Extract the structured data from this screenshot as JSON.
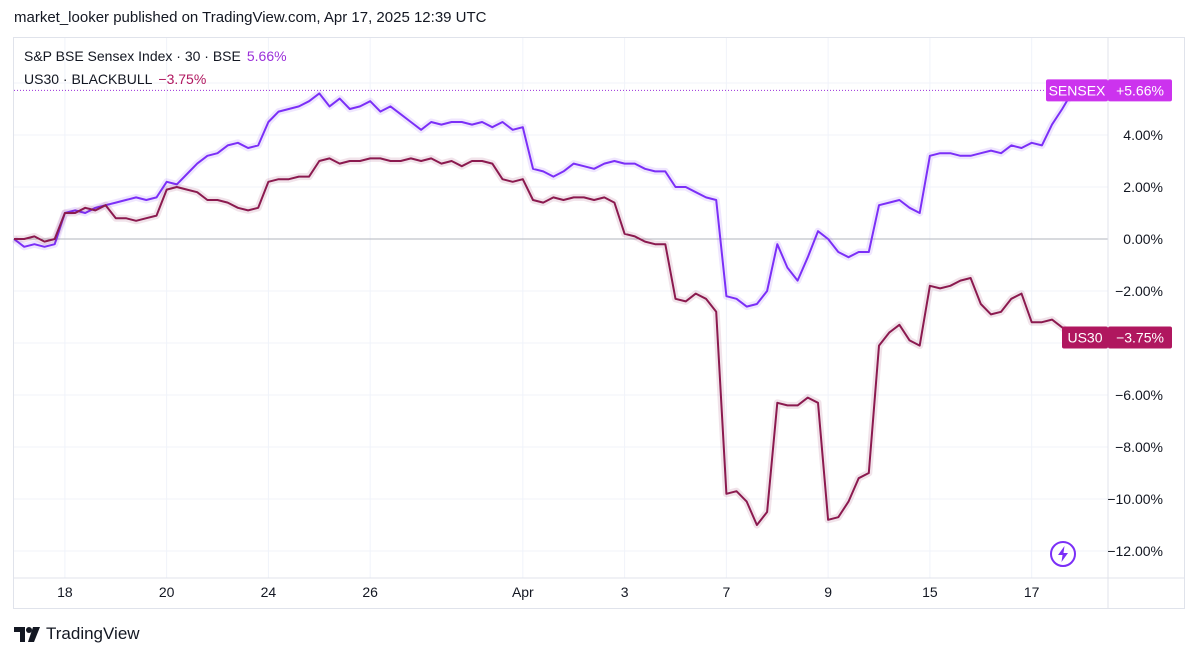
{
  "header": {
    "publish_line": "market_looker published on TradingView.com, Apr 17, 2025 12:39 UTC"
  },
  "legend": [
    {
      "label": "S&P BSE Sensex Index · 30 · BSE",
      "value": "5.66%",
      "color": "#7b2ff7"
    },
    {
      "label": "US30 · BLACKBULL",
      "value": "−3.75%",
      "color": "#8b1a4f"
    }
  ],
  "price_labels": [
    {
      "name": "SENSEX",
      "value": "+5.66%",
      "color": "#cc33ee"
    },
    {
      "name": "US30",
      "value": "−3.75%",
      "color": "#b0175f"
    }
  ],
  "footer": {
    "brand": "TradingView"
  },
  "icons": {
    "brand_logo": "tradingview-logo-icon",
    "flash": "lightning-bolt-icon"
  },
  "chart_data": {
    "type": "line",
    "y_unit": "%",
    "ylim": [
      -12.5,
      6.5
    ],
    "y_ticks": [
      {
        "v": 4,
        "label": "4.00%"
      },
      {
        "v": 2,
        "label": "2.00%"
      },
      {
        "v": 0,
        "label": "0.00%"
      },
      {
        "v": -2,
        "label": "−2.00%"
      },
      {
        "v": -6,
        "label": "−6.00%"
      },
      {
        "v": -8,
        "label": "−8.00%"
      },
      {
        "v": -10,
        "label": "−10.00%"
      },
      {
        "v": -12,
        "label": "−12.00%"
      }
    ],
    "x_range": [
      0,
      21.5
    ],
    "x_ticks": [
      {
        "x": 1,
        "label": "18"
      },
      {
        "x": 3,
        "label": "20"
      },
      {
        "x": 5,
        "label": "24"
      },
      {
        "x": 7,
        "label": "26"
      },
      {
        "x": 10,
        "label": "Apr"
      },
      {
        "x": 12,
        "label": "3"
      },
      {
        "x": 14,
        "label": "7"
      },
      {
        "x": 16,
        "label": "9"
      },
      {
        "x": 18,
        "label": "15"
      },
      {
        "x": 20,
        "label": "17"
      }
    ],
    "grid": true,
    "series": [
      {
        "name": "SENSEX",
        "color": "#7b2ff7",
        "points": [
          [
            0,
            0
          ],
          [
            0.2,
            -0.3
          ],
          [
            0.4,
            -0.2
          ],
          [
            0.6,
            -0.3
          ],
          [
            0.8,
            -0.2
          ],
          [
            1.0,
            1.0
          ],
          [
            1.2,
            1.1
          ],
          [
            1.4,
            1.0
          ],
          [
            1.6,
            1.2
          ],
          [
            1.8,
            1.3
          ],
          [
            2.0,
            1.4
          ],
          [
            2.2,
            1.5
          ],
          [
            2.4,
            1.6
          ],
          [
            2.6,
            1.5
          ],
          [
            2.8,
            1.6
          ],
          [
            3.0,
            2.2
          ],
          [
            3.2,
            2.1
          ],
          [
            3.4,
            2.5
          ],
          [
            3.6,
            2.9
          ],
          [
            3.8,
            3.2
          ],
          [
            4.0,
            3.3
          ],
          [
            4.2,
            3.6
          ],
          [
            4.4,
            3.7
          ],
          [
            4.6,
            3.5
          ],
          [
            4.8,
            3.6
          ],
          [
            5.0,
            4.5
          ],
          [
            5.2,
            4.9
          ],
          [
            5.4,
            5.0
          ],
          [
            5.6,
            5.1
          ],
          [
            5.8,
            5.3
          ],
          [
            6.0,
            5.6
          ],
          [
            6.2,
            5.1
          ],
          [
            6.4,
            5.4
          ],
          [
            6.6,
            5.0
          ],
          [
            6.8,
            5.1
          ],
          [
            7.0,
            5.3
          ],
          [
            7.2,
            4.9
          ],
          [
            7.4,
            5.1
          ],
          [
            7.6,
            4.8
          ],
          [
            7.8,
            4.5
          ],
          [
            8.0,
            4.2
          ],
          [
            8.2,
            4.5
          ],
          [
            8.4,
            4.4
          ],
          [
            8.6,
            4.5
          ],
          [
            8.8,
            4.5
          ],
          [
            9.0,
            4.4
          ],
          [
            9.2,
            4.5
          ],
          [
            9.4,
            4.3
          ],
          [
            9.6,
            4.5
          ],
          [
            9.8,
            4.2
          ],
          [
            10.0,
            4.3
          ],
          [
            10.2,
            2.7
          ],
          [
            10.4,
            2.6
          ],
          [
            10.6,
            2.4
          ],
          [
            10.8,
            2.6
          ],
          [
            11.0,
            2.9
          ],
          [
            11.2,
            2.8
          ],
          [
            11.4,
            2.7
          ],
          [
            11.6,
            2.9
          ],
          [
            11.8,
            3.0
          ],
          [
            12.0,
            2.9
          ],
          [
            12.2,
            2.9
          ],
          [
            12.4,
            2.7
          ],
          [
            12.6,
            2.6
          ],
          [
            12.8,
            2.6
          ],
          [
            13.0,
            2.0
          ],
          [
            13.2,
            2.0
          ],
          [
            13.4,
            1.8
          ],
          [
            13.6,
            1.6
          ],
          [
            13.8,
            1.5
          ],
          [
            14.0,
            -2.2
          ],
          [
            14.2,
            -2.3
          ],
          [
            14.4,
            -2.6
          ],
          [
            14.6,
            -2.5
          ],
          [
            14.8,
            -2.0
          ],
          [
            15.0,
            -0.2
          ],
          [
            15.2,
            -1.1
          ],
          [
            15.4,
            -1.6
          ],
          [
            15.6,
            -0.7
          ],
          [
            15.8,
            0.3
          ],
          [
            16.0,
            0.0
          ],
          [
            16.2,
            -0.5
          ],
          [
            16.4,
            -0.7
          ],
          [
            16.6,
            -0.5
          ],
          [
            16.8,
            -0.5
          ],
          [
            17.0,
            1.3
          ],
          [
            17.2,
            1.4
          ],
          [
            17.4,
            1.5
          ],
          [
            17.6,
            1.2
          ],
          [
            17.8,
            1.0
          ],
          [
            18.0,
            3.2
          ],
          [
            18.2,
            3.3
          ],
          [
            18.4,
            3.3
          ],
          [
            18.6,
            3.2
          ],
          [
            18.8,
            3.2
          ],
          [
            19.0,
            3.3
          ],
          [
            19.2,
            3.4
          ],
          [
            19.4,
            3.3
          ],
          [
            19.6,
            3.6
          ],
          [
            19.8,
            3.5
          ],
          [
            20.0,
            3.7
          ],
          [
            20.2,
            3.6
          ],
          [
            20.4,
            4.4
          ],
          [
            20.6,
            5.0
          ],
          [
            20.8,
            5.66
          ]
        ]
      },
      {
        "name": "US30",
        "color": "#8b1a4f",
        "points": [
          [
            0,
            0
          ],
          [
            0.2,
            0.0
          ],
          [
            0.4,
            0.1
          ],
          [
            0.6,
            -0.1
          ],
          [
            0.8,
            0.0
          ],
          [
            1.0,
            1.0
          ],
          [
            1.2,
            1.0
          ],
          [
            1.4,
            1.2
          ],
          [
            1.6,
            1.1
          ],
          [
            1.8,
            1.3
          ],
          [
            2.0,
            0.8
          ],
          [
            2.2,
            0.8
          ],
          [
            2.4,
            0.7
          ],
          [
            2.6,
            0.8
          ],
          [
            2.8,
            0.9
          ],
          [
            3.0,
            1.9
          ],
          [
            3.2,
            2.0
          ],
          [
            3.4,
            1.9
          ],
          [
            3.6,
            1.8
          ],
          [
            3.8,
            1.5
          ],
          [
            4.0,
            1.5
          ],
          [
            4.2,
            1.4
          ],
          [
            4.4,
            1.2
          ],
          [
            4.6,
            1.1
          ],
          [
            4.8,
            1.2
          ],
          [
            5.0,
            2.2
          ],
          [
            5.2,
            2.3
          ],
          [
            5.4,
            2.3
          ],
          [
            5.6,
            2.4
          ],
          [
            5.8,
            2.4
          ],
          [
            6.0,
            3.0
          ],
          [
            6.2,
            3.1
          ],
          [
            6.4,
            2.9
          ],
          [
            6.6,
            3.0
          ],
          [
            6.8,
            3.0
          ],
          [
            7.0,
            3.1
          ],
          [
            7.2,
            3.1
          ],
          [
            7.4,
            3.0
          ],
          [
            7.6,
            3.0
          ],
          [
            7.8,
            3.1
          ],
          [
            8.0,
            3.0
          ],
          [
            8.2,
            3.1
          ],
          [
            8.4,
            2.9
          ],
          [
            8.6,
            3.0
          ],
          [
            8.8,
            2.8
          ],
          [
            9.0,
            3.0
          ],
          [
            9.2,
            3.0
          ],
          [
            9.4,
            2.9
          ],
          [
            9.6,
            2.3
          ],
          [
            9.8,
            2.2
          ],
          [
            10.0,
            2.3
          ],
          [
            10.2,
            1.5
          ],
          [
            10.4,
            1.4
          ],
          [
            10.6,
            1.6
          ],
          [
            10.8,
            1.5
          ],
          [
            11.0,
            1.6
          ],
          [
            11.2,
            1.6
          ],
          [
            11.4,
            1.5
          ],
          [
            11.6,
            1.6
          ],
          [
            11.8,
            1.4
          ],
          [
            12.0,
            0.2
          ],
          [
            12.2,
            0.1
          ],
          [
            12.4,
            -0.1
          ],
          [
            12.6,
            -0.2
          ],
          [
            12.8,
            -0.2
          ],
          [
            13.0,
            -2.3
          ],
          [
            13.2,
            -2.4
          ],
          [
            13.4,
            -2.1
          ],
          [
            13.6,
            -2.3
          ],
          [
            13.8,
            -2.8
          ],
          [
            14.0,
            -9.8
          ],
          [
            14.2,
            -9.7
          ],
          [
            14.4,
            -10.1
          ],
          [
            14.6,
            -11.0
          ],
          [
            14.8,
            -10.5
          ],
          [
            15.0,
            -6.3
          ],
          [
            15.2,
            -6.4
          ],
          [
            15.4,
            -6.4
          ],
          [
            15.6,
            -6.1
          ],
          [
            15.8,
            -6.3
          ],
          [
            16.0,
            -10.8
          ],
          [
            16.2,
            -10.7
          ],
          [
            16.4,
            -10.1
          ],
          [
            16.6,
            -9.2
          ],
          [
            16.8,
            -9.0
          ],
          [
            17.0,
            -4.1
          ],
          [
            17.2,
            -3.6
          ],
          [
            17.4,
            -3.3
          ],
          [
            17.6,
            -3.9
          ],
          [
            17.8,
            -4.1
          ],
          [
            18.0,
            -1.8
          ],
          [
            18.2,
            -1.9
          ],
          [
            18.4,
            -1.8
          ],
          [
            18.6,
            -1.6
          ],
          [
            18.8,
            -1.5
          ],
          [
            19.0,
            -2.5
          ],
          [
            19.2,
            -2.9
          ],
          [
            19.4,
            -2.8
          ],
          [
            19.6,
            -2.3
          ],
          [
            19.8,
            -2.1
          ],
          [
            20.0,
            -3.2
          ],
          [
            20.2,
            -3.2
          ],
          [
            20.4,
            -3.1
          ],
          [
            20.6,
            -3.4
          ],
          [
            20.8,
            -3.75
          ]
        ]
      }
    ]
  }
}
